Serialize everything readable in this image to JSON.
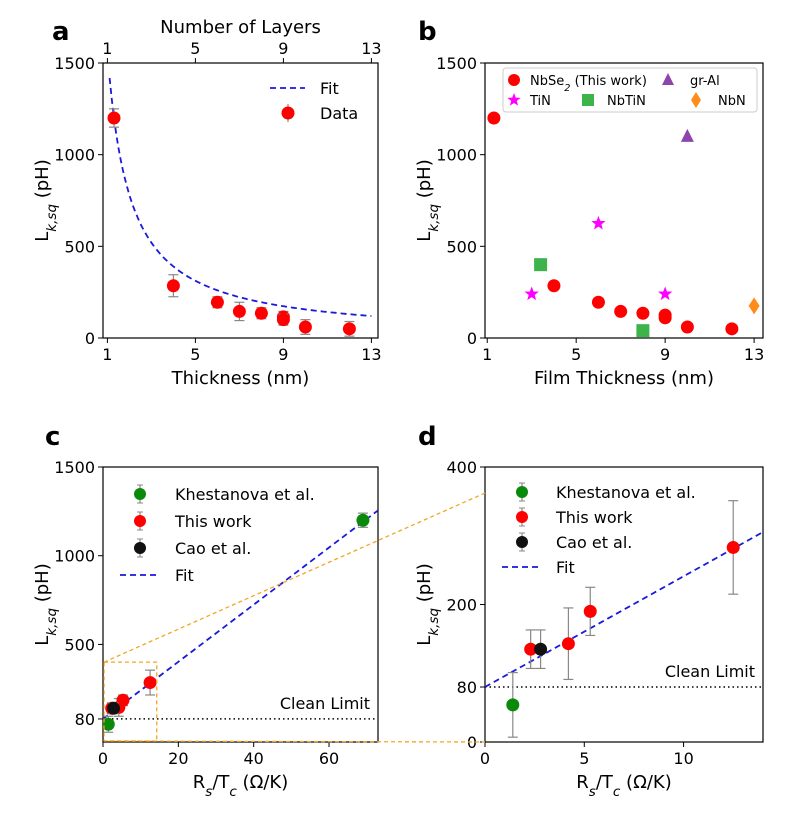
{
  "chart_data": [
    {
      "panel": "a",
      "type": "scatter",
      "xlabel": "Thickness (nm)",
      "ylabel": "L_{k,sq} (pH)",
      "top_xlabel": "Number of Layers",
      "xlim": [
        0.8,
        13.3
      ],
      "ylim": [
        0,
        1500
      ],
      "xticks": [
        1,
        5,
        9,
        13
      ],
      "top_xticks": [
        1,
        5,
        9,
        13
      ],
      "yticks": [
        0,
        500,
        1000,
        1500
      ],
      "legend": {
        "position": "top-right",
        "fit": "Fit",
        "data": "Data"
      },
      "series": [
        {
          "name": "Data",
          "x": [
            1.3,
            4,
            6,
            7,
            8,
            9,
            9,
            10,
            12
          ],
          "y": [
            1200,
            285,
            195,
            145,
            135,
            115,
            100,
            60,
            50
          ],
          "err": [
            50,
            60,
            30,
            50,
            30,
            30,
            30,
            40,
            40
          ]
        },
        {
          "name": "Fit",
          "kind": "hyperbola",
          "A": 1560,
          "x_range": [
            1.1,
            13
          ]
        }
      ]
    },
    {
      "panel": "b",
      "type": "scatter",
      "xlabel": "Film Thickness (nm)",
      "ylabel": "L_{k,sq} (pH)",
      "xlim": [
        0.9,
        13.4
      ],
      "ylim": [
        0,
        1500
      ],
      "xticks": [
        1,
        5,
        9,
        13
      ],
      "yticks": [
        0,
        500,
        1000,
        1500
      ],
      "legend": {
        "position": "top"
      },
      "series": [
        {
          "name": "NbSe₂ (This work)",
          "marker": "circle",
          "color": "#ff0000",
          "x": [
            1.3,
            4,
            6,
            7,
            8,
            9,
            9,
            10,
            12
          ],
          "y": [
            1200,
            285,
            195,
            145,
            135,
            125,
            110,
            60,
            50
          ]
        },
        {
          "name": "gr-Al",
          "marker": "triangle",
          "color": "#8e44ad",
          "x": [
            10
          ],
          "y": [
            1100
          ]
        },
        {
          "name": "TiN",
          "marker": "star",
          "color": "#ff00ff",
          "x": [
            3,
            6,
            9
          ],
          "y": [
            240,
            625,
            240
          ]
        },
        {
          "name": "NbTiN",
          "marker": "square",
          "color": "#3cb44b",
          "x": [
            3.4,
            8
          ],
          "y": [
            400,
            40
          ]
        },
        {
          "name": "NbN",
          "marker": "diamond",
          "color": "#ff8c1a",
          "x": [
            13
          ],
          "y": [
            175
          ]
        }
      ]
    },
    {
      "panel": "c",
      "type": "scatter",
      "xlabel": "R_s/T_c (Ω/K)",
      "ylabel": "L_{k,sq} (pH)",
      "xlim": [
        0,
        73
      ],
      "ylim": [
        -50,
        1500
      ],
      "xticks": [
        0,
        20,
        40,
        60
      ],
      "yticks": [
        80,
        500,
        1000,
        1500
      ],
      "clean_limit": {
        "value": 80,
        "label": "Clean Limit"
      },
      "fit": {
        "intercept": 80,
        "slope": 16.1
      },
      "legend": {
        "position": "top-left",
        "fit": "Fit"
      },
      "series": [
        {
          "name": "Khestanova et al.",
          "color": "#0a8a0a",
          "x": [
            1.4,
            69
          ],
          "y": [
            50,
            1200
          ],
          "err": [
            45,
            40
          ]
        },
        {
          "name": "This work",
          "color": "#ff0000",
          "x": [
            2.3,
            4.2,
            5.3,
            12.5
          ],
          "y": [
            140,
            145,
            185,
            285
          ],
          "err": [
            30,
            50,
            30,
            70
          ]
        },
        {
          "name": "Cao et al.",
          "color": "#111111",
          "x": [
            2.8
          ],
          "y": [
            140
          ],
          "err": [
            30
          ]
        }
      ]
    },
    {
      "panel": "d",
      "type": "scatter",
      "xlabel": "R_s/T_c (Ω/K)",
      "ylabel": "L_{k,sq} (pH)",
      "xlim": [
        0,
        14
      ],
      "ylim": [
        0,
        400
      ],
      "xticks": [
        0,
        5,
        10
      ],
      "yticks": [
        0,
        80,
        200,
        400
      ],
      "clean_limit": {
        "value": 80,
        "label": "Clean Limit"
      },
      "fit": {
        "intercept": 80,
        "slope": 16.1
      },
      "legend": {
        "position": "top-left",
        "fit": "Fit"
      },
      "series": [
        {
          "name": "Khestanova et al.",
          "color": "#0a8a0a",
          "x": [
            1.4
          ],
          "y": [
            54
          ],
          "err": [
            47
          ]
        },
        {
          "name": "This work",
          "color": "#ff0000",
          "x": [
            2.3,
            4.2,
            5.3,
            12.5
          ],
          "y": [
            135,
            143,
            190,
            283
          ],
          "err": [
            28,
            52,
            35,
            68
          ]
        },
        {
          "name": "Cao et al.",
          "color": "#111111",
          "x": [
            2.8
          ],
          "y": [
            135
          ],
          "err": [
            28
          ]
        }
      ]
    }
  ]
}
